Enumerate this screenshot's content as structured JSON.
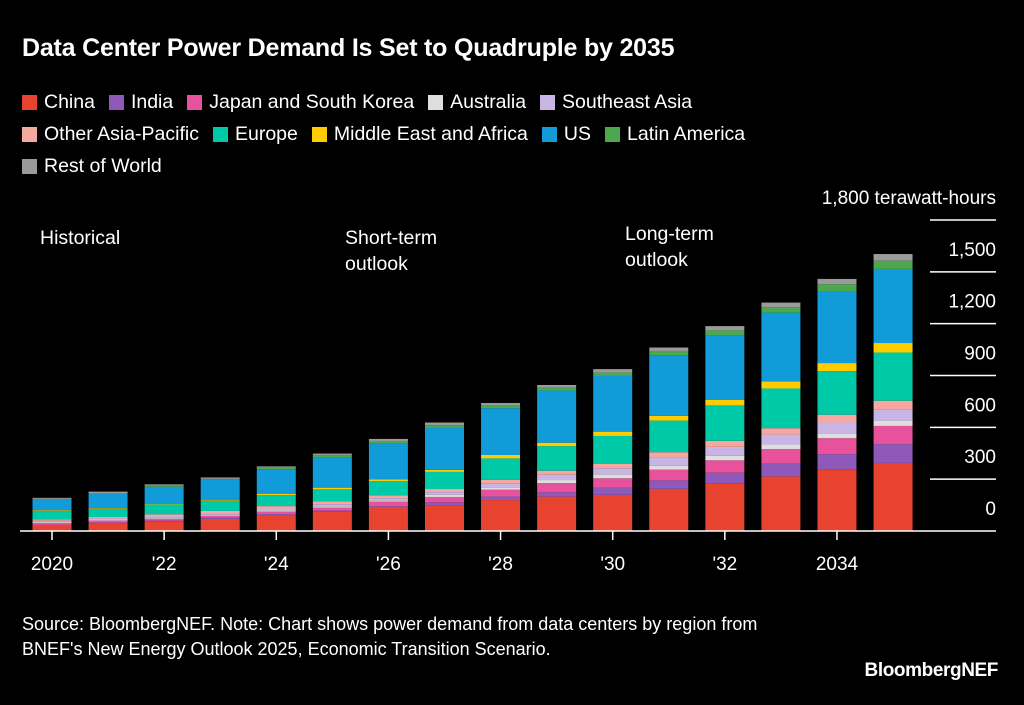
{
  "chart_data": {
    "type": "bar",
    "stacked": true,
    "title": "Data Center Power Demand Is Set to Quadruple by 2035",
    "unit_label": "1,800 terawatt-hours",
    "categories": [
      "2020",
      "2021",
      "2022",
      "2023",
      "2024",
      "2025",
      "2026",
      "2027",
      "2028",
      "2029",
      "2030",
      "2031",
      "2032",
      "2033",
      "2034",
      "2035"
    ],
    "x_tick_labels": [
      {
        "year": "2020",
        "label": "2020"
      },
      {
        "year": "2022",
        "label": "'22"
      },
      {
        "year": "2024",
        "label": "'24"
      },
      {
        "year": "2026",
        "label": "'26"
      },
      {
        "year": "2028",
        "label": "'28"
      },
      {
        "year": "2030",
        "label": "'30"
      },
      {
        "year": "2032",
        "label": "'32"
      },
      {
        "year": "2034",
        "label": "2034"
      }
    ],
    "y_ticks": [
      {
        "value": 0,
        "label": "0"
      },
      {
        "value": 300,
        "label": "300"
      },
      {
        "value": 600,
        "label": "600"
      },
      {
        "value": 900,
        "label": "900"
      },
      {
        "value": 1200,
        "label": "1,200"
      },
      {
        "value": 1500,
        "label": "1,500"
      },
      {
        "value": 1800,
        "label": "1,800 terawatt-hours"
      }
    ],
    "ylim": [
      0,
      1800
    ],
    "grid": true,
    "legend_position": "top",
    "series": [
      {
        "name": "China",
        "color": "#e8432f",
        "values": [
          29,
          43,
          53,
          70,
          90,
          111,
          133,
          150,
          179,
          199,
          209,
          244,
          277,
          316,
          355,
          394
        ]
      },
      {
        "name": "India",
        "color": "#8e59b8",
        "values": [
          6,
          6,
          6,
          6,
          8,
          8,
          10,
          16,
          21,
          25,
          43,
          49,
          60,
          74,
          90,
          109
        ]
      },
      {
        "name": "Japan and South Korea",
        "color": "#e8529c",
        "values": [
          12,
          12,
          12,
          12,
          14,
          16,
          27,
          31,
          39,
          53,
          53,
          62,
          72,
          84,
          92,
          105
        ]
      },
      {
        "name": "Australia",
        "color": "#dedede",
        "values": [
          6,
          6,
          6,
          6,
          8,
          8,
          8,
          12,
          14,
          18,
          23,
          23,
          27,
          27,
          29,
          31
        ]
      },
      {
        "name": "Southeast Asia",
        "color": "#c9b4e6",
        "values": [
          6,
          6,
          10,
          10,
          10,
          12,
          12,
          16,
          23,
          31,
          35,
          47,
          51,
          57,
          62,
          62
        ]
      },
      {
        "name": "Other Asia-Pacific",
        "color": "#f6a8a0",
        "values": [
          8,
          8,
          10,
          12,
          14,
          16,
          16,
          18,
          21,
          23,
          27,
          31,
          35,
          37,
          45,
          53
        ]
      },
      {
        "name": "Europe",
        "color": "#00c9a7",
        "values": [
          49,
          47,
          57,
          59,
          64,
          70,
          82,
          99,
          123,
          142,
          160,
          183,
          205,
          230,
          252,
          279
        ]
      },
      {
        "name": "Middle East and Africa",
        "color": "#ffcc00",
        "values": [
          4,
          4,
          4,
          4,
          8,
          10,
          10,
          12,
          20,
          20,
          25,
          27,
          33,
          41,
          47,
          55
        ]
      },
      {
        "name": "US",
        "color": "#129bd9",
        "values": [
          62,
          82,
          98,
          117,
          142,
          177,
          211,
          242,
          271,
          302,
          322,
          351,
          374,
          398,
          417,
          429
        ]
      },
      {
        "name": "Latin America",
        "color": "#4ba84e",
        "values": [
          4,
          6,
          6,
          6,
          8,
          10,
          12,
          16,
          16,
          16,
          20,
          25,
          27,
          31,
          39,
          47
        ]
      },
      {
        "name": "Rest of World",
        "color": "#9a9a9a",
        "values": [
          6,
          8,
          8,
          8,
          8,
          10,
          12,
          16,
          14,
          16,
          20,
          20,
          25,
          27,
          31,
          39
        ]
      }
    ],
    "annotations": [
      {
        "lines": [
          "Historical"
        ]
      },
      {
        "lines": [
          "Short-term",
          "outlook"
        ]
      },
      {
        "lines": [
          "Long-term",
          "outlook"
        ]
      }
    ]
  },
  "footer": {
    "source": "Source: BloombergNEF. Note: Chart shows power demand from data centers by region from BNEF's New Energy Outlook 2025, Economic Transition Scenario.",
    "brand": "BloombergNEF"
  }
}
